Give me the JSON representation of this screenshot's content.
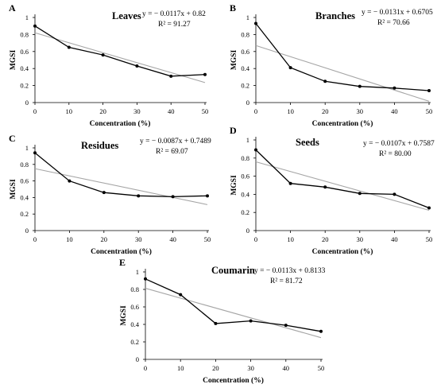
{
  "chart_data": [
    {
      "type": "line",
      "panel_letter": "A",
      "title": "Leaves",
      "equation": "y = − 0.0117x + 0.82",
      "r_squared": "R² = 91.27",
      "xlabel": "Concentration (%)",
      "ylabel": "MGSI",
      "x": [
        0,
        10,
        20,
        30,
        40,
        50
      ],
      "values": [
        0.9,
        0.65,
        0.56,
        0.43,
        0.31,
        0.33
      ],
      "trendline": {
        "slope": -0.0117,
        "intercept": 0.82
      },
      "xticks": [
        "0",
        "10",
        "20",
        "30",
        "40",
        "50"
      ],
      "yticks": [
        "0",
        "0.2",
        "0.4",
        "0.6",
        "0.8",
        "1"
      ],
      "xlim": [
        0,
        50
      ],
      "ylim": [
        0,
        1
      ]
    },
    {
      "type": "line",
      "panel_letter": "B",
      "title": "Branches",
      "equation": "y = − 0.0131x + 0.6705",
      "r_squared": "R² = 70.66",
      "xlabel": "Concentration (%)",
      "ylabel": "MGSI",
      "x": [
        0,
        10,
        20,
        30,
        40,
        50
      ],
      "values": [
        0.93,
        0.41,
        0.25,
        0.19,
        0.17,
        0.14
      ],
      "trendline": {
        "slope": -0.0131,
        "intercept": 0.6705
      },
      "xticks": [
        "0",
        "10",
        "20",
        "30",
        "40",
        "50"
      ],
      "yticks": [
        "0",
        "0.2",
        "0.4",
        "0.6",
        "0.8",
        "1"
      ],
      "xlim": [
        0,
        50
      ],
      "ylim": [
        0,
        1
      ]
    },
    {
      "type": "line",
      "panel_letter": "C",
      "title": "Residues",
      "equation": "y = − 0.0087x + 0.7489",
      "r_squared": "R² = 69.07",
      "xlabel": "Concentration (%)",
      "ylabel": "MGSI",
      "x": [
        0,
        10,
        20,
        30,
        40,
        50
      ],
      "values": [
        0.94,
        0.6,
        0.46,
        0.42,
        0.41,
        0.42
      ],
      "trendline": {
        "slope": -0.0087,
        "intercept": 0.7489
      },
      "xticks": [
        "0",
        "10",
        "20",
        "30",
        "40",
        "50"
      ],
      "yticks": [
        "0",
        "0.2",
        "0.4",
        "0.6",
        "0.8",
        "1"
      ],
      "xlim": [
        0,
        50
      ],
      "ylim": [
        0,
        1
      ]
    },
    {
      "type": "line",
      "panel_letter": "D",
      "title": "Seeds",
      "equation": "y = − 0.0107x + 0.7587",
      "r_squared": "R² = 80.00",
      "xlabel": "Concentration (%)",
      "ylabel": "MGSI",
      "x": [
        0,
        10,
        20,
        30,
        40,
        50
      ],
      "values": [
        0.89,
        0.52,
        0.48,
        0.41,
        0.4,
        0.25
      ],
      "trendline": {
        "slope": -0.0107,
        "intercept": 0.7587
      },
      "xticks": [
        "0",
        "10",
        "20",
        "30",
        "40",
        "50"
      ],
      "yticks": [
        "0",
        "0.2",
        "0.4",
        "0.6",
        "0.8",
        "1"
      ],
      "xlim": [
        0,
        50
      ],
      "ylim": [
        0,
        1
      ]
    },
    {
      "type": "line",
      "panel_letter": "E",
      "title": "Coumarin",
      "equation": "y = − 0.0113x + 0.8133",
      "r_squared": "R² = 81.72",
      "xlabel": "Concentration (%)",
      "ylabel": "MGSI",
      "x": [
        0,
        10,
        20,
        30,
        40,
        50
      ],
      "values": [
        0.92,
        0.74,
        0.41,
        0.44,
        0.39,
        0.32
      ],
      "trendline": {
        "slope": -0.0113,
        "intercept": 0.8133
      },
      "xticks": [
        "0",
        "10",
        "20",
        "30",
        "40",
        "50"
      ],
      "yticks": [
        "0",
        "0.2",
        "0.4",
        "0.6",
        "0.8",
        "1"
      ],
      "xlim": [
        0,
        50
      ],
      "ylim": [
        0,
        1
      ]
    }
  ],
  "colors": {
    "data_line": "#000000",
    "trendline": "#a6a6a6",
    "axis": "#000000"
  }
}
